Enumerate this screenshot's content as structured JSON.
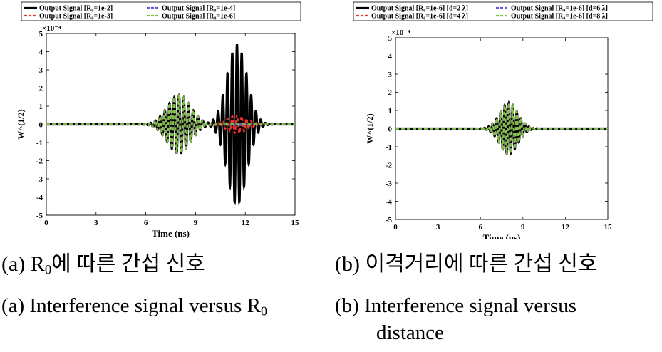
{
  "chart_data": [
    {
      "id": "a",
      "type": "line",
      "xlabel": "Time (ns)",
      "ylabel": "W^(1/2)",
      "y_exponent": "×10⁻⁴",
      "xlim": [
        0,
        15
      ],
      "ylim": [
        -5,
        5
      ],
      "xticks": [
        0,
        3,
        6,
        9,
        12,
        15
      ],
      "yticks": [
        -5,
        -4,
        -3,
        -2,
        -1,
        0,
        1,
        2,
        3,
        4,
        5
      ],
      "legend_placement": "top",
      "series": [
        {
          "name": "Output Signal [R₀=1e-2]",
          "color": "#000000",
          "dash": "solid",
          "packets": [
            {
              "center": 8.0,
              "amplitude": 1.6,
              "sigma": 1.0
            },
            {
              "center": 11.5,
              "amplitude": 4.4,
              "sigma": 0.85
            }
          ]
        },
        {
          "name": "Output Signal [R₀=1e-3]",
          "color": "#e8312a",
          "dash": "dashed",
          "packets": [
            {
              "center": 8.0,
              "amplitude": 1.6,
              "sigma": 1.0
            },
            {
              "center": 11.5,
              "amplitude": 0.5,
              "sigma": 0.85
            }
          ]
        },
        {
          "name": "Output Signal [R₀=1e-4]",
          "color": "#6a5acd",
          "dash": "dashed",
          "packets": [
            {
              "center": 8.0,
              "amplitude": 1.6,
              "sigma": 1.0
            },
            {
              "center": 11.5,
              "amplitude": 0.05,
              "sigma": 0.85
            }
          ]
        },
        {
          "name": "Output Signal [R₀=1e-6]",
          "color": "#7dc243",
          "dash": "dashed",
          "packets": [
            {
              "center": 8.0,
              "amplitude": 1.6,
              "sigma": 1.0
            },
            {
              "center": 11.5,
              "amplitude": 0.0,
              "sigma": 0.85
            }
          ]
        }
      ],
      "carrier_frequency_ghz": 3.5
    },
    {
      "id": "b",
      "type": "line",
      "xlabel": "Time (ns)",
      "ylabel": "W^(1/2)",
      "y_exponent": "×10⁻⁴",
      "xlim": [
        0,
        15
      ],
      "ylim": [
        -5,
        5
      ],
      "xticks": [
        0,
        3,
        6,
        9,
        12,
        15
      ],
      "yticks": [
        -5,
        -4,
        -3,
        -2,
        -1,
        0,
        1,
        2,
        3,
        4,
        5
      ],
      "legend_placement": "top",
      "series": [
        {
          "name": "Output Signal [R₀=1e-6] [d=2 λ]",
          "color": "#000000",
          "dash": "solid",
          "packets": [
            {
              "center": 8.0,
              "amplitude": 1.4,
              "sigma": 0.9
            }
          ]
        },
        {
          "name": "Output Signal [R₀=1e-6] [d=4 λ]",
          "color": "#e8312a",
          "dash": "dashed",
          "packets": [
            {
              "center": 8.0,
              "amplitude": 1.4,
              "sigma": 0.9
            }
          ]
        },
        {
          "name": "Output Signal [R₀=1e-6] [d=6 λ]",
          "color": "#6a5acd",
          "dash": "dashed",
          "packets": [
            {
              "center": 8.0,
              "amplitude": 1.4,
              "sigma": 0.9
            }
          ]
        },
        {
          "name": "Output Signal [R₀=1e-6] [d=8 λ]",
          "color": "#7dc243",
          "dash": "dashed",
          "packets": [
            {
              "center": 8.0,
              "amplitude": 1.4,
              "sigma": 0.9
            }
          ]
        }
      ],
      "carrier_frequency_ghz": 3.5
    }
  ],
  "captions": {
    "a_ko_prefix": "(a) R",
    "a_ko_sub": "0",
    "a_ko_suffix": "에 따른 간섭 신호",
    "b_ko": "(b) 이격거리에 따른 간섭 신호",
    "a_en_prefix": "(a) Interference signal versus R",
    "a_en_sub": "0",
    "b_en_line1": "(b) Interference signal versus",
    "b_en_line2": "distance"
  }
}
